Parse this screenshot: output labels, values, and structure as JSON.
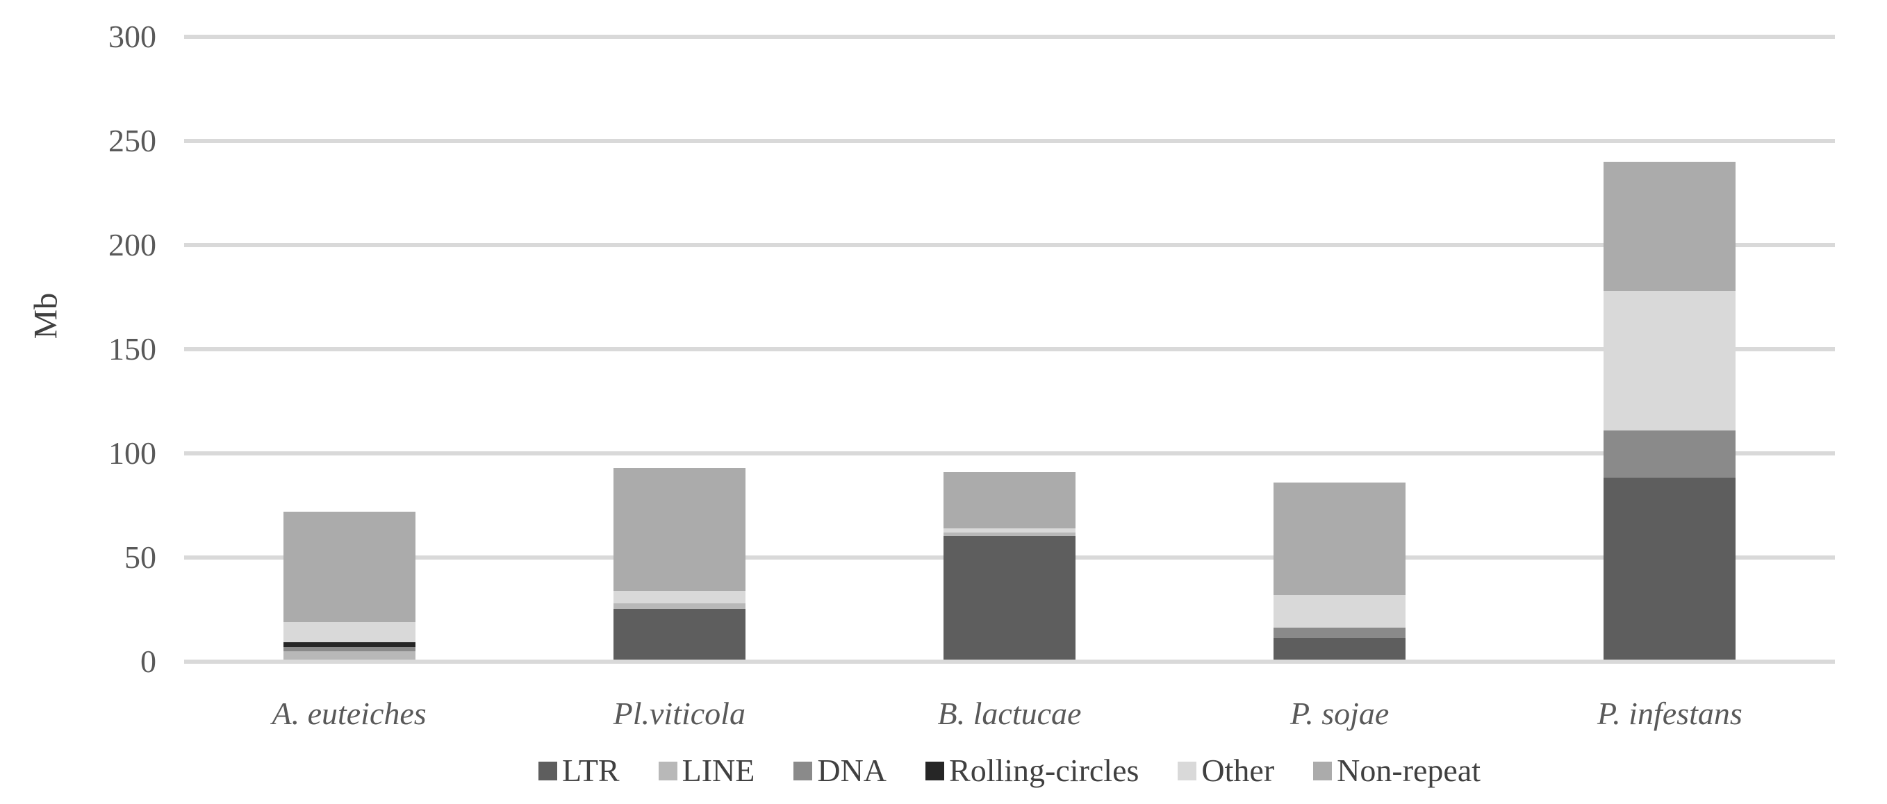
{
  "chart_data": {
    "type": "bar",
    "stacked": true,
    "title": "",
    "xlabel": "",
    "ylabel": "Mb",
    "unit": "Mb",
    "ylim": [
      0,
      300
    ],
    "yticks": [
      0,
      50,
      100,
      150,
      200,
      250,
      300
    ],
    "grid": true,
    "legend_position": "bottom",
    "categories": [
      "A. euteiches",
      "Pl.viticola",
      "B. lactucae",
      "P. sojae",
      "P. infestans"
    ],
    "series": [
      {
        "name": "LTR",
        "color": "#5e5e5e",
        "values": [
          0.5,
          25.5,
          60.5,
          11.5,
          88.5
        ]
      },
      {
        "name": "LINE",
        "color": "#b8b8b8",
        "values": [
          4.5,
          2.5,
          1.5,
          0,
          0
        ]
      },
      {
        "name": "DNA",
        "color": "#8a8a8a",
        "values": [
          2,
          0,
          0,
          5,
          22.5
        ]
      },
      {
        "name": "Rolling-circles",
        "color": "#262626",
        "values": [
          2.5,
          0,
          0,
          0,
          0
        ]
      },
      {
        "name": "Other",
        "color": "#d9d9d9",
        "values": [
          9.5,
          6,
          2,
          15.5,
          67
        ]
      },
      {
        "name": "Non-repeat",
        "color": "#ababab",
        "values": [
          53,
          59,
          27,
          54,
          62
        ]
      }
    ],
    "totals": [
      72,
      93,
      91,
      86,
      240
    ],
    "colors": {
      "gridline": "#d9d9d9",
      "axis_text": "#595959",
      "legend_text": "#404040",
      "background": "#ffffff"
    }
  }
}
